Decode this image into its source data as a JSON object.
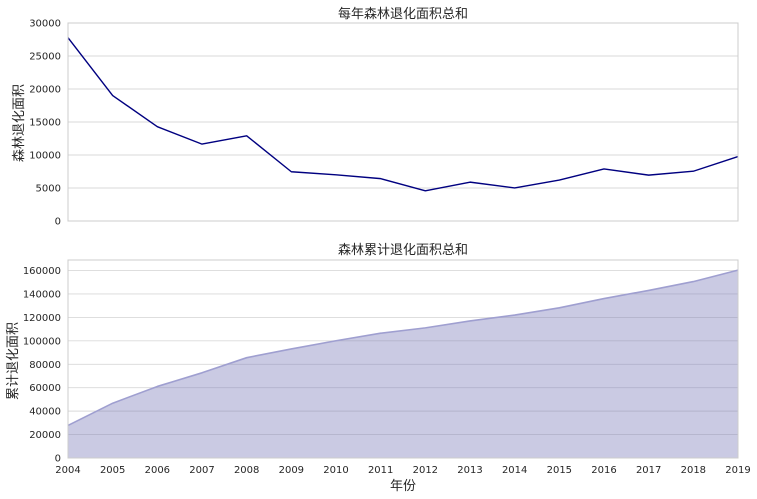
{
  "chart_data": [
    {
      "type": "line",
      "title": "每年森林退化面积总和",
      "xlabel": "",
      "ylabel": "森林退化面积",
      "x": [
        2004,
        2005,
        2006,
        2007,
        2008,
        2009,
        2010,
        2011,
        2012,
        2013,
        2014,
        2015,
        2016,
        2017,
        2018,
        2019
      ],
      "ylim": [
        0,
        30000
      ],
      "yticks": [
        "0",
        "5000",
        "10000",
        "15000",
        "20000",
        "25000",
        "30000"
      ],
      "show_x_ticks": false,
      "grid": "horizontal",
      "series": [
        {
          "values": [
            27770,
            19010,
            14290,
            11650,
            12910,
            7460,
            7000,
            6420,
            4570,
            5890,
            5010,
            6210,
            7890,
            6950,
            7540,
            9760
          ],
          "color": "#000080"
        }
      ]
    },
    {
      "type": "area",
      "title": "森林累计退化面积总和",
      "xlabel": "年份",
      "ylabel": "累计退化面积",
      "x": [
        2004,
        2005,
        2006,
        2007,
        2008,
        2009,
        2010,
        2011,
        2012,
        2013,
        2014,
        2015,
        2016,
        2017,
        2018,
        2019
      ],
      "xticks": [
        "2004",
        "2005",
        "2006",
        "2007",
        "2008",
        "2009",
        "2010",
        "2011",
        "2012",
        "2013",
        "2014",
        "2015",
        "2016",
        "2017",
        "2018",
        "2019"
      ],
      "ylim": [
        0,
        169000
      ],
      "yticks": [
        "0",
        "20000",
        "40000",
        "60000",
        "80000",
        "100000",
        "120000",
        "140000",
        "160000"
      ],
      "grid": "horizontal",
      "series": [
        {
          "values": [
            27770,
            46780,
            61070,
            72720,
            85630,
            93090,
            100090,
            106510,
            111080,
            116970,
            121980,
            128190,
            136080,
            143030,
            150570,
            160330
          ],
          "fill_color": "#7b7bb9",
          "fill_opacity": 0.4,
          "line_color": "#9f9fd0"
        }
      ]
    }
  ]
}
